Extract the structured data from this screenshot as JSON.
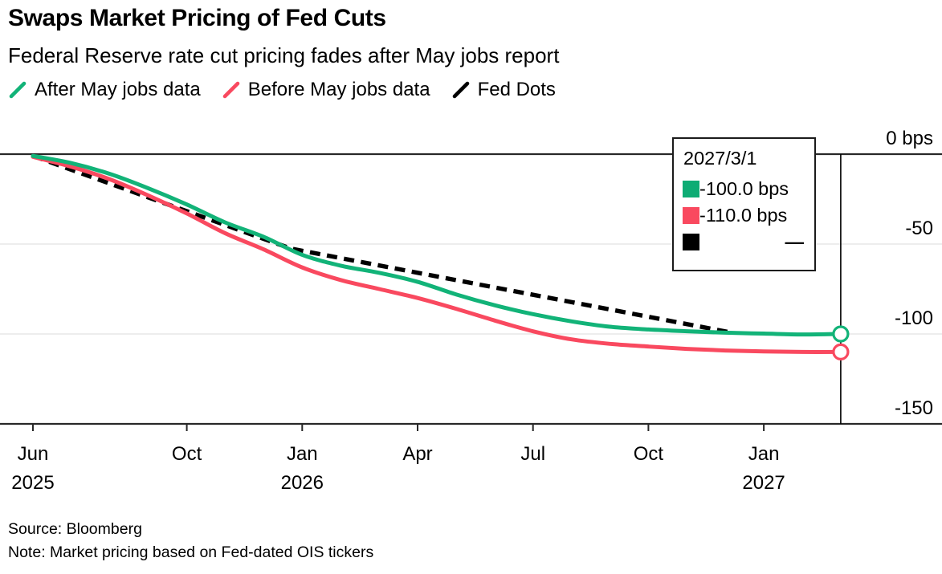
{
  "header": {
    "title": "Swaps Market Pricing of Fed Cuts",
    "subtitle": "Federal Reserve rate cut pricing fades after May jobs report"
  },
  "legend": [
    {
      "label": "After May jobs data",
      "color": "#12b378"
    },
    {
      "label": "Before May jobs data",
      "color": "#f9495f"
    },
    {
      "label": "Fed Dots",
      "color": "#000000"
    }
  ],
  "tooltip": {
    "date": "2027/3/1",
    "rows": [
      {
        "swatch": "#0eac74",
        "value": "-100.0 bps"
      },
      {
        "swatch": "#f9495f",
        "value": "-110.0 bps"
      },
      {
        "swatch": "#000000",
        "value": "—"
      }
    ]
  },
  "chart_data": {
    "type": "line",
    "title": "Swaps Market Pricing of Fed Cuts",
    "subtitle": "Federal Reserve rate cut pricing fades after May jobs report",
    "x_axis": {
      "unit": "month_index_from_Jun_2025",
      "ticks": [
        {
          "label": "Jun",
          "year": "2025",
          "m": 0
        },
        {
          "label": "Oct",
          "m": 4
        },
        {
          "label": "Jan",
          "year": "2026",
          "m": 7
        },
        {
          "label": "Apr",
          "m": 10
        },
        {
          "label": "Jul",
          "m": 13
        },
        {
          "label": "Oct",
          "m": 16
        },
        {
          "label": "Jan",
          "year": "2027",
          "m": 19
        }
      ]
    },
    "y_axis": {
      "unit": "bps",
      "range": [
        -150,
        0
      ],
      "grid": true,
      "ticks": [
        {
          "label": "0 bps",
          "value": 0
        },
        {
          "label": "-50",
          "value": -50
        },
        {
          "label": "-100",
          "value": -100
        },
        {
          "label": "-150",
          "value": -150
        }
      ]
    },
    "legend_position": "top",
    "series": [
      {
        "name": "After May jobs data",
        "color": "#12b378",
        "style": "solid",
        "points": [
          [
            0,
            -1
          ],
          [
            1,
            -5
          ],
          [
            2,
            -11
          ],
          [
            3,
            -19
          ],
          [
            4,
            -28
          ],
          [
            5,
            -38
          ],
          [
            6,
            -46
          ],
          [
            7,
            -56
          ],
          [
            8,
            -62
          ],
          [
            9,
            -66
          ],
          [
            10,
            -71
          ],
          [
            11,
            -78
          ],
          [
            12,
            -84
          ],
          [
            13,
            -89
          ],
          [
            14,
            -93
          ],
          [
            15,
            -96
          ],
          [
            16,
            -97.5
          ],
          [
            17,
            -98.5
          ],
          [
            18,
            -99.3
          ],
          [
            19,
            -99.8
          ],
          [
            20,
            -100.3
          ],
          [
            21,
            -100
          ]
        ]
      },
      {
        "name": "Before May jobs data",
        "color": "#f9495f",
        "style": "solid",
        "points": [
          [
            0,
            -1.5
          ],
          [
            1,
            -7
          ],
          [
            2,
            -14
          ],
          [
            3,
            -23
          ],
          [
            4,
            -33
          ],
          [
            5,
            -44
          ],
          [
            6,
            -53
          ],
          [
            7,
            -63
          ],
          [
            8,
            -70
          ],
          [
            9,
            -75
          ],
          [
            10,
            -80
          ],
          [
            11,
            -86
          ],
          [
            12,
            -92.5
          ],
          [
            13,
            -98.5
          ],
          [
            14,
            -103
          ],
          [
            15,
            -105.5
          ],
          [
            16,
            -107
          ],
          [
            17,
            -108.3
          ],
          [
            18,
            -109.2
          ],
          [
            19,
            -109.7
          ],
          [
            20,
            -110
          ],
          [
            21,
            -110
          ]
        ]
      },
      {
        "name": "Fed Dots",
        "color": "#000000",
        "style": "dashed",
        "points": [
          [
            0,
            -1
          ],
          [
            6.7,
            -52.5
          ],
          [
            18.1,
            -99
          ]
        ]
      }
    ],
    "crosshair": {
      "date": "2027/3/1",
      "m": 21,
      "markers": [
        {
          "series": "After May jobs data",
          "value": -100.0
        },
        {
          "series": "Before May jobs data",
          "value": -110.0
        }
      ]
    }
  },
  "footer": {
    "source": "Source: Bloomberg",
    "note": "Note: Market pricing based on Fed-dated OIS tickers"
  }
}
